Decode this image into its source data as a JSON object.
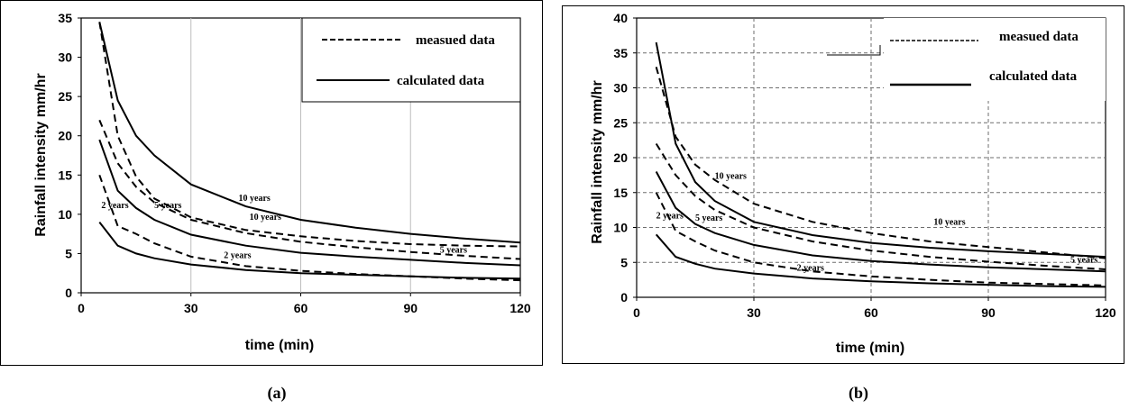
{
  "chart_data": [
    {
      "type": "line",
      "panel_label": "(a)",
      "xlabel": "time (min)",
      "ylabel": "Rainfall intensity  mm/hr",
      "xlim": [
        0,
        120
      ],
      "ylim": [
        0,
        35
      ],
      "xticks": [
        0,
        30,
        60,
        90,
        120
      ],
      "yticks": [
        0,
        5,
        10,
        15,
        20,
        25,
        30,
        35
      ],
      "grid": "vertical",
      "legend": {
        "position": "top-right",
        "items": [
          {
            "label": "measued data",
            "style": "dashed"
          },
          {
            "label": "calculated data",
            "style": "solid"
          }
        ]
      },
      "series": [
        {
          "label": "10 years",
          "style": "solid",
          "x": [
            5,
            10,
            15,
            20,
            30,
            45,
            60,
            75,
            90,
            105,
            120
          ],
          "y": [
            34.5,
            24.5,
            20.0,
            17.5,
            13.8,
            11.0,
            9.3,
            8.3,
            7.5,
            6.9,
            6.4
          ]
        },
        {
          "label": "5 years",
          "style": "solid",
          "x": [
            5,
            10,
            15,
            20,
            30,
            45,
            60,
            75,
            90,
            105,
            120
          ],
          "y": [
            19.5,
            13.0,
            10.8,
            9.3,
            7.4,
            6.0,
            5.1,
            4.6,
            4.2,
            3.8,
            3.5
          ]
        },
        {
          "label": "2 years",
          "style": "solid",
          "x": [
            5,
            10,
            15,
            20,
            30,
            45,
            60,
            75,
            90,
            105,
            120
          ],
          "y": [
            9.0,
            6.0,
            5.0,
            4.4,
            3.6,
            2.9,
            2.5,
            2.3,
            2.1,
            1.9,
            1.8
          ]
        },
        {
          "label": "10 years",
          "style": "dashed",
          "x": [
            5,
            10,
            15,
            20,
            30,
            45,
            60,
            75,
            90,
            105,
            120
          ],
          "y": [
            34.5,
            20.0,
            14.8,
            12.0,
            9.6,
            8.0,
            7.2,
            6.6,
            6.2,
            6.0,
            5.9
          ]
        },
        {
          "label": "5 years",
          "style": "dashed",
          "x": [
            5,
            10,
            15,
            20,
            30,
            45,
            60,
            75,
            90,
            105,
            120
          ],
          "y": [
            22.0,
            16.5,
            13.5,
            11.5,
            9.3,
            7.6,
            6.5,
            5.8,
            5.2,
            4.7,
            4.3
          ]
        },
        {
          "label": "2 years",
          "style": "dashed",
          "x": [
            5,
            10,
            15,
            20,
            30,
            45,
            60,
            75,
            90,
            105,
            120
          ],
          "y": [
            15.0,
            8.5,
            7.5,
            6.3,
            4.6,
            3.4,
            2.8,
            2.4,
            2.1,
            1.8,
            1.6
          ]
        }
      ],
      "annotations": [
        {
          "text": "10 years",
          "x": 43,
          "y": 11.7
        },
        {
          "text": "10 years",
          "x": 46,
          "y": 9.3
        },
        {
          "text": "5 years",
          "x": 20,
          "y": 10.8
        },
        {
          "text": "2 years",
          "x": 5.5,
          "y": 10.8
        },
        {
          "text": "2 years",
          "x": 39,
          "y": 4.4
        },
        {
          "text": "5 years",
          "x": 98,
          "y": 5.1
        }
      ]
    },
    {
      "type": "line",
      "panel_label": "(b)",
      "xlabel": "time (min)",
      "ylabel": "Rainfall intensity  mm/hr",
      "xlim": [
        0,
        120
      ],
      "ylim": [
        0,
        40
      ],
      "xticks": [
        0,
        30,
        60,
        90,
        120
      ],
      "yticks": [
        0,
        5,
        10,
        15,
        20,
        25,
        30,
        35,
        40
      ],
      "grid": "both-dashed",
      "legend": {
        "position": "top-right",
        "items": [
          {
            "label": "measued data",
            "style": "dashed"
          },
          {
            "label": "calculated data",
            "style": "solid"
          }
        ]
      },
      "series": [
        {
          "label": "10 years",
          "style": "solid",
          "x": [
            5,
            10,
            15,
            20,
            30,
            45,
            60,
            75,
            90,
            105,
            120
          ],
          "y": [
            36.5,
            22.0,
            16.5,
            13.8,
            10.8,
            8.9,
            7.8,
            7.1,
            6.6,
            6.2,
            5.8
          ]
        },
        {
          "label": "5 years",
          "style": "solid",
          "x": [
            5,
            10,
            15,
            20,
            30,
            45,
            60,
            75,
            90,
            105,
            120
          ],
          "y": [
            18.0,
            12.8,
            10.5,
            9.2,
            7.5,
            6.0,
            5.2,
            4.7,
            4.3,
            4.0,
            3.7
          ]
        },
        {
          "label": "2 years",
          "style": "solid",
          "x": [
            5,
            10,
            15,
            20,
            30,
            45,
            60,
            75,
            90,
            105,
            120
          ],
          "y": [
            9.0,
            5.8,
            4.8,
            4.1,
            3.4,
            2.7,
            2.3,
            2.0,
            1.8,
            1.6,
            1.5
          ]
        },
        {
          "label": "10 years",
          "style": "dashed",
          "x": [
            5,
            10,
            15,
            20,
            30,
            45,
            60,
            75,
            90,
            105,
            120
          ],
          "y": [
            33.0,
            23.0,
            19.0,
            16.8,
            13.4,
            10.8,
            9.2,
            8.0,
            7.2,
            6.4,
            5.6
          ]
        },
        {
          "label": "5 years",
          "style": "dashed",
          "x": [
            5,
            10,
            15,
            20,
            30,
            45,
            60,
            75,
            90,
            105,
            120
          ],
          "y": [
            22.0,
            17.5,
            14.5,
            12.5,
            10.0,
            8.0,
            6.7,
            5.8,
            5.1,
            4.5,
            4.0
          ]
        },
        {
          "label": "2 years",
          "style": "dashed",
          "x": [
            5,
            10,
            15,
            20,
            30,
            45,
            60,
            75,
            90,
            105,
            120
          ],
          "y": [
            15.0,
            9.5,
            8.0,
            6.7,
            5.0,
            3.7,
            3.0,
            2.5,
            2.1,
            1.9,
            1.7
          ]
        }
      ],
      "annotations": [
        {
          "text": "10 years",
          "x": 20,
          "y": 17.0
        },
        {
          "text": "10 years",
          "x": 76,
          "y": 10.4
        },
        {
          "text": "5 years",
          "x": 15,
          "y": 11.0
        },
        {
          "text": "2 years",
          "x": 5,
          "y": 11.3
        },
        {
          "text": "2 years",
          "x": 41,
          "y": 3.8
        },
        {
          "text": "5 years",
          "x": 111,
          "y": 5.0
        }
      ]
    }
  ]
}
